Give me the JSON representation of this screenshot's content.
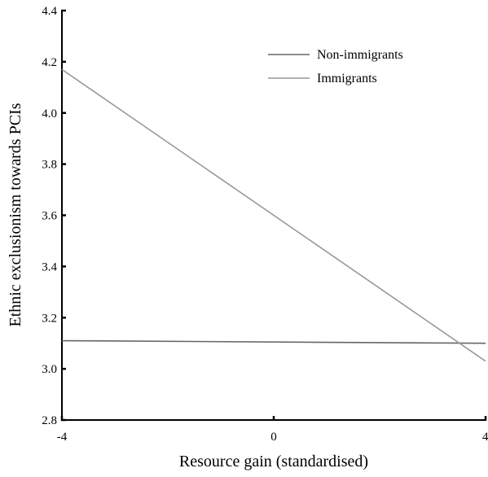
{
  "chart_data": {
    "type": "line",
    "title": "",
    "xlabel": "Resource gain (standardised)",
    "ylabel": "Ethnic exclusionism towards PCIs",
    "xlim": [
      -4,
      4
    ],
    "ylim": [
      2.8,
      4.4
    ],
    "x_ticks": [
      -4,
      0,
      4
    ],
    "x_tick_labels": [
      "-4",
      "0",
      "4"
    ],
    "y_ticks": [
      2.8,
      3.0,
      3.2,
      3.4,
      3.6,
      3.8,
      4.0,
      4.2,
      4.4
    ],
    "y_tick_labels": [
      "2.8",
      "3.0",
      "3.2",
      "3.4",
      "3.6",
      "3.8",
      "4.0",
      "4.2",
      "4.4"
    ],
    "grid": false,
    "legend_position": "top-right",
    "series": [
      {
        "name": "Non-immigrants",
        "color": "#666666",
        "x": [
          -4,
          4
        ],
        "y": [
          3.11,
          3.1
        ]
      },
      {
        "name": "Immigrants",
        "color": "#999999",
        "x": [
          -4,
          4
        ],
        "y": [
          4.17,
          3.03
        ]
      }
    ]
  }
}
